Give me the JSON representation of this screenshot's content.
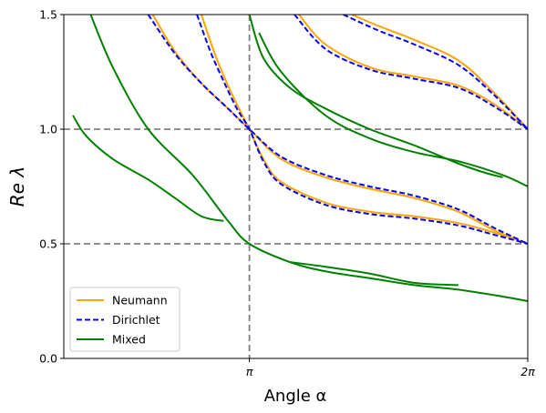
{
  "chart_data": {
    "type": "line",
    "xlabel": "Angle α",
    "ylabel": "Re λ",
    "xlim": [
      1.047,
      6.2832
    ],
    "ylim": [
      0.0,
      1.5
    ],
    "x_ticks": [
      {
        "value": 3.1416,
        "label": "π"
      },
      {
        "value": 6.2832,
        "label": "2π"
      }
    ],
    "y_ticks": [
      {
        "value": 0.0,
        "label": "0.0"
      },
      {
        "value": 0.5,
        "label": "0.5"
      },
      {
        "value": 1.0,
        "label": "1.0"
      },
      {
        "value": 1.5,
        "label": "1.5"
      }
    ],
    "reference_lines": {
      "color": "#808080",
      "style": "dashed",
      "vertical": [
        3.1416
      ],
      "horizontal": [
        0.5,
        1.0
      ]
    },
    "legend": {
      "position": "lower-left",
      "entries": [
        {
          "label": "Neumann",
          "color": "#FFA500",
          "style": "solid"
        },
        {
          "label": "Dirichlet",
          "color": "#0000FF",
          "style": "dashed"
        },
        {
          "label": "Mixed",
          "color": "#008000",
          "style": "solid"
        }
      ]
    },
    "series": [
      {
        "family": "Neumann",
        "color": "#FFA500",
        "style": "solid",
        "points": [
          [
            2.05,
            1.5
          ],
          [
            2.3,
            1.34
          ],
          [
            2.6,
            1.2
          ],
          [
            2.9,
            1.09
          ],
          [
            3.1416,
            1.0
          ],
          [
            3.5,
            0.87
          ],
          [
            4.0,
            0.79
          ],
          [
            4.5,
            0.74
          ],
          [
            5.0,
            0.7
          ],
          [
            5.5,
            0.64
          ],
          [
            5.9,
            0.56
          ],
          [
            6.2832,
            0.5
          ]
        ]
      },
      {
        "family": "Neumann",
        "color": "#FFA500",
        "style": "solid",
        "points": [
          [
            2.6,
            1.5
          ],
          [
            2.75,
            1.33
          ],
          [
            2.9,
            1.19
          ],
          [
            3.05,
            1.07
          ],
          [
            3.1416,
            1.0
          ],
          [
            3.3,
            0.87
          ],
          [
            3.5,
            0.77
          ],
          [
            4.0,
            0.68
          ],
          [
            4.5,
            0.64
          ],
          [
            5.0,
            0.62
          ],
          [
            5.5,
            0.59
          ],
          [
            5.9,
            0.55
          ],
          [
            6.2832,
            0.5
          ]
        ]
      },
      {
        "family": "Neumann",
        "color": "#FFA500",
        "style": "solid",
        "points": [
          [
            3.7,
            1.5
          ],
          [
            4.0,
            1.37
          ],
          [
            4.5,
            1.27
          ],
          [
            5.0,
            1.23
          ],
          [
            5.5,
            1.19
          ],
          [
            5.9,
            1.11
          ],
          [
            6.2832,
            1.0
          ]
        ]
      },
      {
        "family": "Neumann",
        "color": "#FFA500",
        "style": "solid",
        "points": [
          [
            4.3,
            1.5
          ],
          [
            4.6,
            1.45
          ],
          [
            5.0,
            1.39
          ],
          [
            5.5,
            1.3
          ],
          [
            5.9,
            1.16
          ],
          [
            6.2832,
            1.0
          ]
        ]
      },
      {
        "family": "Dirichlet",
        "color": "#0000FF",
        "style": "dashed",
        "points": [
          [
            2.0,
            1.5
          ],
          [
            2.3,
            1.33
          ],
          [
            2.6,
            1.2
          ],
          [
            2.9,
            1.09
          ],
          [
            3.1416,
            1.0
          ],
          [
            3.5,
            0.88
          ],
          [
            4.0,
            0.8
          ],
          [
            4.5,
            0.75
          ],
          [
            5.0,
            0.71
          ],
          [
            5.5,
            0.65
          ],
          [
            5.9,
            0.57
          ],
          [
            6.2832,
            0.5
          ]
        ]
      },
      {
        "family": "Dirichlet",
        "color": "#0000FF",
        "style": "dashed",
        "points": [
          [
            2.55,
            1.5
          ],
          [
            2.7,
            1.34
          ],
          [
            2.85,
            1.21
          ],
          [
            3.0,
            1.09
          ],
          [
            3.1416,
            1.0
          ],
          [
            3.3,
            0.86
          ],
          [
            3.5,
            0.76
          ],
          [
            4.0,
            0.67
          ],
          [
            4.5,
            0.63
          ],
          [
            5.0,
            0.61
          ],
          [
            5.5,
            0.58
          ],
          [
            5.9,
            0.54
          ],
          [
            6.2832,
            0.5
          ]
        ]
      },
      {
        "family": "Dirichlet",
        "color": "#0000FF",
        "style": "dashed",
        "points": [
          [
            3.65,
            1.5
          ],
          [
            4.0,
            1.35
          ],
          [
            4.5,
            1.26
          ],
          [
            5.0,
            1.22
          ],
          [
            5.5,
            1.18
          ],
          [
            5.9,
            1.1
          ],
          [
            6.2832,
            1.0
          ]
        ]
      },
      {
        "family": "Dirichlet",
        "color": "#0000FF",
        "style": "dashed",
        "points": [
          [
            4.2,
            1.5
          ],
          [
            4.6,
            1.43
          ],
          [
            5.0,
            1.37
          ],
          [
            5.5,
            1.28
          ],
          [
            5.9,
            1.15
          ],
          [
            6.2832,
            1.0
          ]
        ]
      },
      {
        "family": "Mixed",
        "color": "#008000",
        "style": "solid",
        "points": [
          [
            1.35,
            1.5
          ],
          [
            1.6,
            1.27
          ],
          [
            2.0,
            1.0
          ],
          [
            2.5,
            0.8
          ],
          [
            2.9,
            0.6
          ],
          [
            3.1416,
            0.5
          ],
          [
            3.6,
            0.42
          ],
          [
            4.0,
            0.38
          ],
          [
            4.5,
            0.35
          ],
          [
            5.0,
            0.32
          ],
          [
            5.5,
            0.3
          ],
          [
            6.0,
            0.27
          ],
          [
            6.2832,
            0.25
          ]
        ]
      },
      {
        "family": "Mixed",
        "color": "#008000",
        "style": "solid",
        "points": [
          [
            1.15,
            1.06
          ],
          [
            1.3,
            0.97
          ],
          [
            1.6,
            0.87
          ],
          [
            2.0,
            0.78
          ],
          [
            2.3,
            0.7
          ],
          [
            2.6,
            0.62
          ],
          [
            2.85,
            0.6
          ]
        ]
      },
      {
        "family": "Mixed",
        "color": "#008000",
        "style": "solid",
        "points": [
          [
            3.1416,
            1.5
          ],
          [
            3.3,
            1.31
          ],
          [
            3.6,
            1.18
          ],
          [
            4.0,
            1.09
          ],
          [
            4.5,
            1.0
          ],
          [
            5.0,
            0.93
          ],
          [
            5.5,
            0.85
          ],
          [
            5.8,
            0.81
          ],
          [
            6.0,
            0.79
          ]
        ]
      },
      {
        "family": "Mixed",
        "color": "#008000",
        "style": "solid",
        "points": [
          [
            3.25,
            1.42
          ],
          [
            3.5,
            1.25
          ],
          [
            4.0,
            1.06
          ],
          [
            4.5,
            0.96
          ],
          [
            5.0,
            0.9
          ],
          [
            5.5,
            0.86
          ],
          [
            6.0,
            0.8
          ],
          [
            6.2832,
            0.75
          ]
        ]
      },
      {
        "family": "Mixed",
        "color": "#008000",
        "style": "solid",
        "points": [
          [
            3.6,
            0.42
          ],
          [
            4.0,
            0.4
          ],
          [
            4.5,
            0.37
          ],
          [
            5.0,
            0.33
          ],
          [
            5.5,
            0.32
          ]
        ]
      }
    ]
  }
}
